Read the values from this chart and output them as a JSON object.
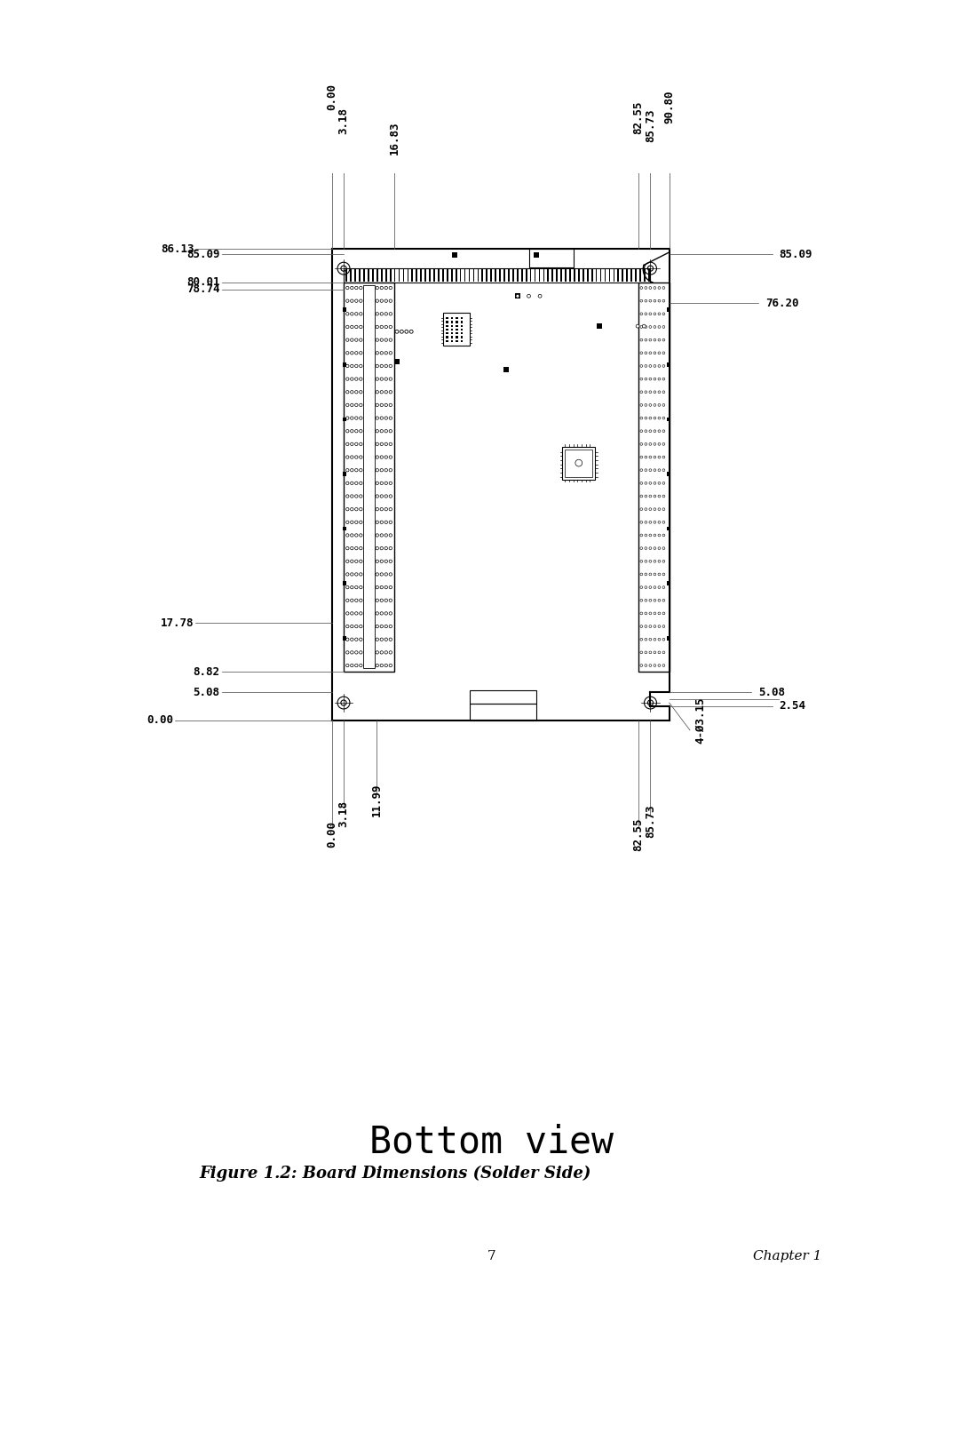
{
  "bg_color": "#ffffff",
  "line_color": "#000000",
  "title": "Bottom view",
  "caption": "Figure 1.2: Board Dimensions (Solder Side)",
  "page_num": "7",
  "chapter": "Chapter 1",
  "dim_label_special": "4-Ø3.15",
  "top_labels": [
    [
      "0.00",
      0.0,
      210
    ],
    [
      "3.18",
      3.18,
      175
    ],
    [
      "16.83",
      16.83,
      150
    ],
    [
      "82.55",
      82.55,
      180
    ],
    [
      "85.73",
      85.73,
      168
    ],
    [
      "90.80",
      90.8,
      195
    ]
  ],
  "bottom_labels": [
    [
      "0.00",
      0.0,
      -155
    ],
    [
      "3.18",
      3.18,
      -125
    ],
    [
      "11.99",
      11.99,
      -105
    ],
    [
      "82.55",
      82.55,
      -155
    ],
    [
      "85.73",
      85.73,
      -135
    ]
  ],
  "left_labels": [
    [
      "17.78",
      17.78,
      108
    ],
    [
      "5.08",
      5.08,
      145
    ],
    [
      "0.00",
      0.0,
      78
    ],
    [
      "8.82",
      8.82,
      145
    ],
    [
      "78.74",
      78.74,
      145
    ],
    [
      "80.01",
      80.01,
      145
    ],
    [
      "85.09",
      85.09,
      145
    ],
    [
      "86.13",
      86.13,
      108
    ]
  ],
  "right_labels": [
    [
      "5.08",
      5.08,
      928
    ],
    [
      "2.54",
      2.54,
      958
    ],
    [
      "76.20",
      76.2,
      938
    ],
    [
      "85.09",
      85.09,
      958
    ]
  ]
}
